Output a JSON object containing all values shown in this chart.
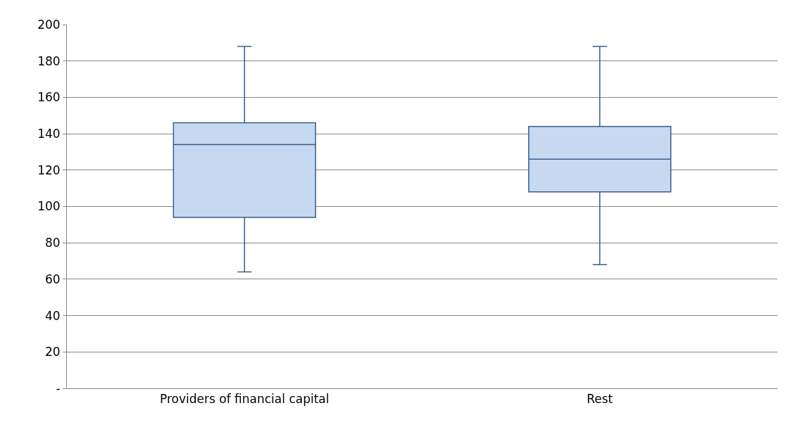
{
  "chart_data": {
    "type": "box",
    "categories": [
      "Providers of financial capital",
      "Rest"
    ],
    "boxes": [
      {
        "low": 64,
        "q1": 94,
        "median": 134,
        "q3": 146,
        "high": 188
      },
      {
        "low": 68,
        "q1": 108,
        "median": 126,
        "q3": 144,
        "high": 188
      }
    ],
    "color": "#c6d9f0",
    "ylim": [
      0,
      200
    ],
    "yticks": [
      {
        "value": 0,
        "label": "-"
      },
      20,
      40,
      60,
      80,
      100,
      120,
      140,
      160,
      180,
      200
    ],
    "grid": "y"
  }
}
